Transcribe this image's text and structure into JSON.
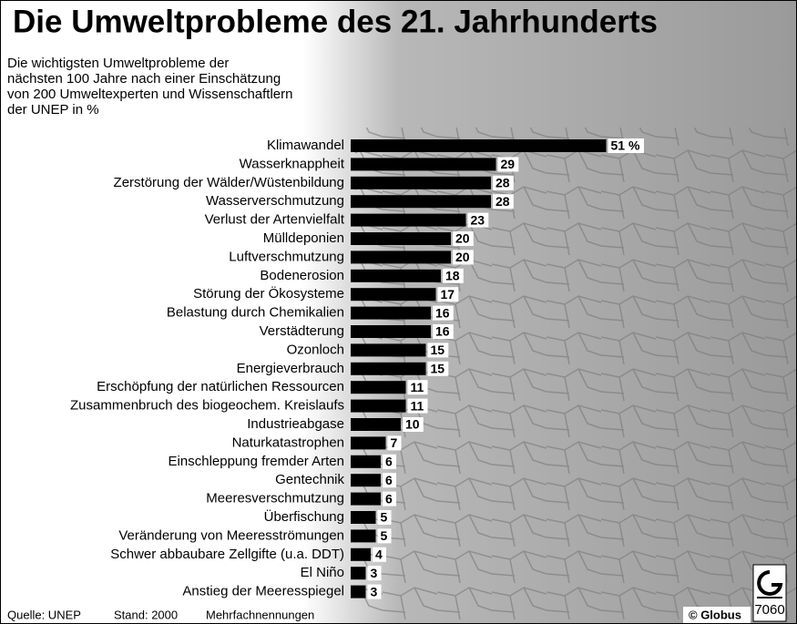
{
  "chart_data": {
    "type": "bar",
    "orientation": "horizontal",
    "title": "Die Umweltprobleme des 21. Jahrhunderts",
    "subtitle": [
      "Die wichtigsten Umweltprobleme der",
      "nächsten 100 Jahre nach einer Einschätzung",
      "von 200 Umweltexperten und Wissenschaftlern",
      "der UNEP in %"
    ],
    "categories": [
      "Klimawandel",
      "Wasserknappheit",
      "Zerstörung der Wälder/Wüstenbildung",
      "Wasserverschmutzung",
      "Verlust der Artenvielfalt",
      "Mülldeponien",
      "Luftverschmutzung",
      "Bodenerosion",
      "Störung der Ökosysteme",
      "Belastung durch Chemikalien",
      "Verstädterung",
      "Ozonloch",
      "Energieverbrauch",
      "Erschöpfung der natürlichen Ressourcen",
      "Zusammenbruch des biogeochem. Kreislaufs",
      "Industrieabgase",
      "Naturkatastrophen",
      "Einschleppung fremder Arten",
      "Gentechnik",
      "Meeresverschmutzung",
      "Überfischung",
      "Veränderung von Meeresströmungen",
      "Schwer abbaubare Zellgifte (u.a. DDT)",
      "El Niño",
      "Anstieg der Meeresspiegel"
    ],
    "values": [
      51,
      29,
      28,
      28,
      23,
      20,
      20,
      18,
      17,
      16,
      16,
      15,
      15,
      11,
      11,
      10,
      7,
      6,
      6,
      6,
      5,
      5,
      4,
      3,
      3
    ],
    "value_labels": [
      "51 %",
      "29",
      "28",
      "28",
      "23",
      "20",
      "20",
      "18",
      "17",
      "16",
      "16",
      "15",
      "15",
      "11",
      "11",
      "10",
      "7",
      "6",
      "6",
      "6",
      "5",
      "5",
      "4",
      "3",
      "3"
    ],
    "color": "#000000",
    "source": "Quelle: UNEP",
    "date": "Stand: 2000",
    "note": "Mehrfachnennungen",
    "publisher": "© Globus",
    "graphic_number": "7060"
  }
}
